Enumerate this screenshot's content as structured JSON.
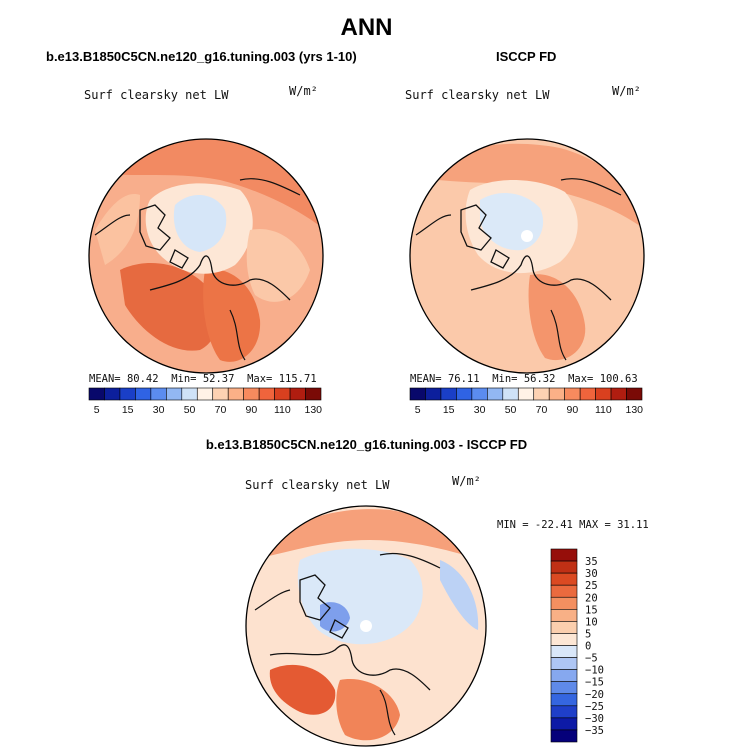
{
  "figure": {
    "title": "ANN",
    "left_case": "b.e13.B1850C5CN.ne120_g16.tuning.003 (yrs 1-10)",
    "right_case": "ISCCP FD",
    "diff_title": "b.e13.B1850C5CN.ne120_g16.tuning.003 - ISCCP FD"
  },
  "colors": {
    "seq_palette": [
      "#08086b",
      "#0c1f9c",
      "#1a3fc7",
      "#2f63e4",
      "#5b8cef",
      "#92b7f3",
      "#cfe2f7",
      "#fff2e6",
      "#fdd2b3",
      "#fbb087",
      "#f78a5e",
      "#f0643c",
      "#d9401f",
      "#b01d10",
      "#7a0a06"
    ],
    "div_palette": [
      "#05007a",
      "#0d1aa6",
      "#1f3fc9",
      "#3566e0",
      "#5f8ae9",
      "#86a8ef",
      "#aec6f4",
      "#d9e7f9",
      "#fde7d5",
      "#fbcfae",
      "#f8b086",
      "#f38f60",
      "#ea6a3e",
      "#db4a22",
      "#c03015",
      "#960e0a"
    ]
  },
  "chart_data": [
    {
      "type": "heatmap",
      "projection": "north polar stereographic",
      "title": "b.e13.B1850C5CN.ne120_g16.tuning.003 (yrs 1-10)",
      "variable": "Surf clearsky net LW",
      "units": "W/m²",
      "mean": 80.42,
      "min": 52.37,
      "max": 115.71,
      "stats_text": [
        "MEAN=",
        "80.42",
        "Min=",
        "52.37",
        "Max=",
        "115.71"
      ],
      "colorbar_levels": [
        5,
        15,
        30,
        50,
        70,
        90,
        110,
        130
      ],
      "colorbar_labels": [
        "5",
        "15",
        "30",
        "50",
        "70",
        "90",
        "110",
        "130"
      ]
    },
    {
      "type": "heatmap",
      "projection": "north polar stereographic",
      "title": "ISCCP FD",
      "variable": "Surf clearsky net LW",
      "units": "W/m²",
      "mean": 76.11,
      "min": 56.32,
      "max": 100.63,
      "stats_text": [
        "MEAN=",
        "76.11",
        "Min=",
        "56.32",
        "Max=",
        "100.63"
      ],
      "colorbar_levels": [
        5,
        15,
        30,
        50,
        70,
        90,
        110,
        130
      ],
      "colorbar_labels": [
        "5",
        "15",
        "30",
        "50",
        "70",
        "90",
        "110",
        "130"
      ]
    },
    {
      "type": "heatmap",
      "projection": "north polar stereographic",
      "title": "b.e13.B1850C5CN.ne120_g16.tuning.003 - ISCCP FD",
      "variable": "Surf clearsky net LW",
      "units": "W/m²",
      "min": -22.41,
      "max": 31.11,
      "stats_text": "MIN = -22.41 MAX = 31.11",
      "colorbar_levels": [
        35,
        30,
        25,
        20,
        15,
        10,
        5,
        0,
        -5,
        -10,
        -15,
        -20,
        -25,
        -30,
        -35
      ],
      "colorbar_labels": [
        "35",
        "30",
        "25",
        "20",
        "15",
        "10",
        "5",
        "0",
        "-5",
        "-10",
        "-15",
        "-20",
        "-25",
        "-30",
        "-35"
      ]
    }
  ]
}
